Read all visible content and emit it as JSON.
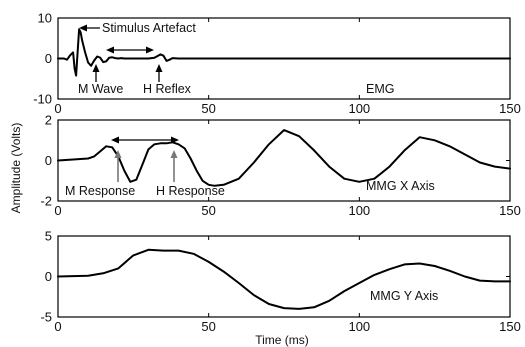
{
  "chart_data": [
    {
      "type": "line",
      "title": "",
      "xlabel": "",
      "ylabel": "",
      "xlim": [
        0,
        150
      ],
      "ylim": [
        -10,
        10
      ],
      "xticks": [
        "0",
        "50",
        "100",
        "150"
      ],
      "yticks": [
        "10",
        "0",
        "-10"
      ],
      "panel_label": "EMG",
      "series": [
        {
          "x": [
            0,
            2,
            3,
            4,
            5,
            5.5,
            6,
            6.5,
            7,
            7.5,
            8,
            9,
            10,
            11,
            12,
            13,
            14,
            15,
            16,
            17,
            18,
            19,
            20,
            21,
            22,
            24,
            26,
            28,
            30,
            32,
            33,
            34,
            35,
            36,
            37,
            38,
            40,
            45,
            50,
            100,
            150
          ],
          "y": [
            0,
            0,
            -0.3,
            0.8,
            1.5,
            -2.5,
            -4.2,
            1.5,
            7.2,
            6.5,
            4.5,
            1.5,
            -1.0,
            -1.8,
            -0.5,
            0.5,
            0.2,
            -0.9,
            -0.7,
            0.2,
            0.3,
            0.1,
            0,
            0.1,
            0,
            0,
            0,
            0,
            0,
            0.2,
            0.6,
            1.0,
            0.7,
            -0.6,
            -0.3,
            0.1,
            0,
            0,
            0,
            0,
            0
          ]
        }
      ],
      "annotations": [
        {
          "text": "Stimulus Artefact",
          "x": 7,
          "y": 7
        },
        {
          "text": "M Wave",
          "x": 14,
          "y": -1
        },
        {
          "text": "H Reflex",
          "x": 33,
          "y": -1
        }
      ]
    },
    {
      "type": "line",
      "title": "",
      "xlabel": "",
      "ylabel": "Amplitude (Volts)",
      "xlim": [
        0,
        150
      ],
      "ylim": [
        -2,
        2
      ],
      "xticks": [
        "0",
        "50",
        "100",
        "150"
      ],
      "yticks": [
        "2",
        "0",
        "-2"
      ],
      "panel_label": "MMG X Axis",
      "series": [
        {
          "x": [
            0,
            5,
            10,
            12,
            14,
            16,
            18,
            20,
            22,
            24,
            26,
            28,
            30,
            32,
            34,
            36,
            38,
            40,
            42,
            44,
            46,
            48,
            50,
            52,
            55,
            60,
            65,
            70,
            75,
            80,
            85,
            90,
            95,
            100,
            105,
            110,
            115,
            120,
            125,
            130,
            135,
            140,
            145,
            150
          ],
          "y": [
            0,
            0.05,
            0.1,
            0.2,
            0.45,
            0.7,
            0.65,
            0.2,
            -0.5,
            -1.05,
            -0.95,
            -0.2,
            0.55,
            0.8,
            0.85,
            0.85,
            0.9,
            0.8,
            0.6,
            0.1,
            -0.5,
            -1.0,
            -1.2,
            -1.25,
            -1.2,
            -0.9,
            -0.1,
            0.8,
            1.5,
            1.2,
            0.5,
            -0.3,
            -0.9,
            -1.05,
            -0.9,
            -0.3,
            0.5,
            1.15,
            1.0,
            0.7,
            0.3,
            -0.1,
            -0.3,
            -0.4
          ]
        }
      ],
      "annotations": [
        {
          "text": "M Response",
          "x": 18,
          "y": 0.5
        },
        {
          "text": "H Response",
          "x": 38,
          "y": 0.5
        }
      ]
    },
    {
      "type": "line",
      "title": "",
      "xlabel": "Time (ms)",
      "ylabel": "",
      "xlim": [
        0,
        150
      ],
      "ylim": [
        -5,
        5
      ],
      "xticks": [
        "0",
        "50",
        "100",
        "150"
      ],
      "yticks": [
        "5",
        "0",
        "-5"
      ],
      "panel_label": "MMG Y Axis",
      "series": [
        {
          "x": [
            0,
            5,
            10,
            15,
            20,
            25,
            30,
            35,
            40,
            45,
            50,
            55,
            60,
            65,
            70,
            75,
            80,
            85,
            90,
            95,
            100,
            105,
            110,
            115,
            120,
            125,
            130,
            135,
            140,
            145,
            150
          ],
          "y": [
            0,
            0.05,
            0.1,
            0.4,
            1.0,
            2.6,
            3.3,
            3.2,
            3.2,
            2.8,
            1.8,
            0.6,
            -0.8,
            -2.3,
            -3.4,
            -3.9,
            -4.0,
            -3.8,
            -3.0,
            -1.8,
            -0.8,
            0.2,
            0.9,
            1.5,
            1.6,
            1.3,
            0.7,
            0.0,
            -0.5,
            -0.6,
            -0.6
          ]
        }
      ],
      "annotations": []
    }
  ]
}
